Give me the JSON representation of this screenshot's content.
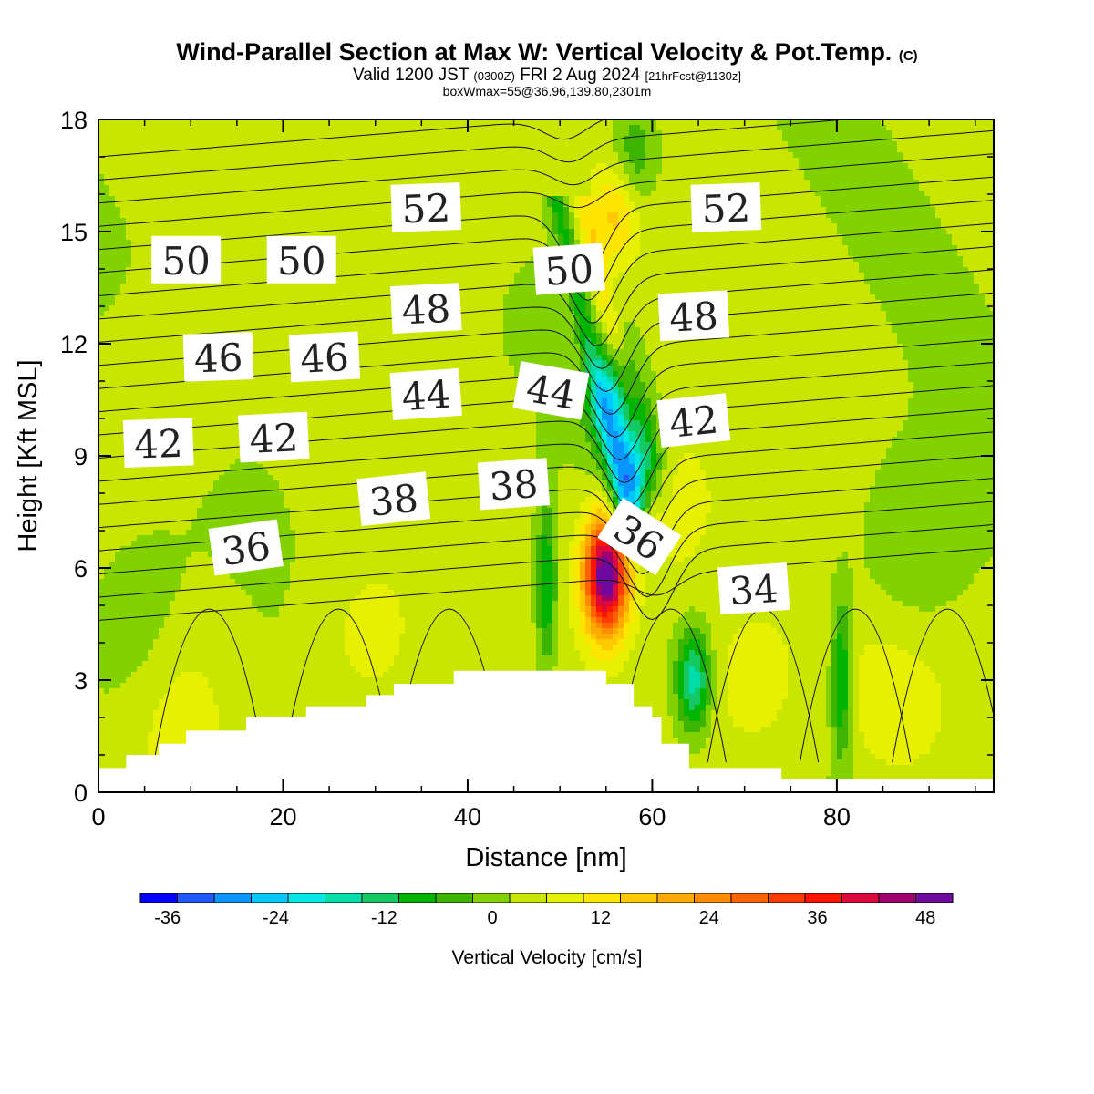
{
  "title": {
    "main": "Wind-Parallel Section at Max W: Vertical Velocity & Pot.Temp.",
    "main_suffix": "(C)",
    "valid_prefix": "Valid 1200 JST",
    "valid_z": "(0300Z)",
    "valid_date": "FRI 2 Aug 2024",
    "valid_fcst": "[21hrFcst@1130z]",
    "box": "boxWmax=55@36.96,139.80,2301m"
  },
  "chart_data": {
    "type": "heatmap",
    "xlabel": "Distance [nm]",
    "ylabel": "Height [Kft MSL]",
    "xlim": [
      0,
      97
    ],
    "ylim": [
      0,
      18
    ],
    "xticks": [
      "0",
      "20",
      "40",
      "60",
      "80"
    ],
    "yticks": [
      "0",
      "3",
      "6",
      "9",
      "12",
      "15",
      "18"
    ],
    "colorbar": {
      "title": "Vertical Velocity [cm/s]",
      "min": -39,
      "max": 51,
      "step": 4,
      "labels": [
        "-36",
        "-24",
        "-12",
        "0",
        "12",
        "24",
        "36",
        "48"
      ],
      "colors": [
        "#0000ff",
        "#1e5aff",
        "#0a96ff",
        "#00c8ff",
        "#00e6e6",
        "#00dcaa",
        "#14c864",
        "#00b400",
        "#3cb400",
        "#82d200",
        "#c8e600",
        "#e6f000",
        "#ffe600",
        "#ffc800",
        "#ffaa00",
        "#ff8c00",
        "#ff6400",
        "#ff3c00",
        "#ff1400",
        "#dc0a3c",
        "#a0006e",
        "#6e0aa0"
      ]
    },
    "terrain": [
      [
        0,
        0.65
      ],
      [
        3,
        0.65
      ],
      [
        3,
        1
      ],
      [
        6.5,
        1
      ],
      [
        6.5,
        1.3
      ],
      [
        9.5,
        1.3
      ],
      [
        9.5,
        1.65
      ],
      [
        16,
        1.65
      ],
      [
        16,
        2
      ],
      [
        22.5,
        2
      ],
      [
        22.5,
        2.3
      ],
      [
        29,
        2.3
      ],
      [
        29,
        2.6
      ],
      [
        32,
        2.6
      ],
      [
        32,
        2.9
      ],
      [
        38.5,
        2.9
      ],
      [
        38.5,
        3.25
      ],
      [
        55,
        3.25
      ],
      [
        55,
        2.9
      ],
      [
        58,
        2.9
      ],
      [
        58,
        2.3
      ],
      [
        60,
        2.3
      ],
      [
        60,
        2
      ],
      [
        61,
        2
      ],
      [
        61,
        1.3
      ],
      [
        64,
        1.3
      ],
      [
        64,
        0.65
      ],
      [
        74,
        0.65
      ],
      [
        74,
        0.35
      ],
      [
        97,
        0.35
      ]
    ],
    "potential_temperature_labels": [
      {
        "text": "34",
        "x": 71,
        "y": 5.4,
        "angle": -4
      },
      {
        "text": "36",
        "x": 16,
        "y": 6.5,
        "angle": -8
      },
      {
        "text": "36",
        "x": 58.5,
        "y": 6.8,
        "angle": 33
      },
      {
        "text": "38",
        "x": 32,
        "y": 7.8,
        "angle": -6
      },
      {
        "text": "38",
        "x": 45,
        "y": 8.2,
        "angle": -4
      },
      {
        "text": "42",
        "x": 6.5,
        "y": 9.3,
        "angle": -2
      },
      {
        "text": "42",
        "x": 19,
        "y": 9.45,
        "angle": -3
      },
      {
        "text": "42",
        "x": 64.5,
        "y": 9.9,
        "angle": -6
      },
      {
        "text": "44",
        "x": 35.5,
        "y": 10.6,
        "angle": -4
      },
      {
        "text": "44",
        "x": 49,
        "y": 10.7,
        "angle": 10
      },
      {
        "text": "46",
        "x": 13,
        "y": 11.6,
        "angle": -2
      },
      {
        "text": "46",
        "x": 24.5,
        "y": 11.6,
        "angle": -3
      },
      {
        "text": "48",
        "x": 35.5,
        "y": 12.9,
        "angle": -3
      },
      {
        "text": "48",
        "x": 64.5,
        "y": 12.7,
        "angle": -3
      },
      {
        "text": "50",
        "x": 9.5,
        "y": 14.2,
        "angle": 0
      },
      {
        "text": "50",
        "x": 22,
        "y": 14.2,
        "angle": 0
      },
      {
        "text": "50",
        "x": 51,
        "y": 13.95,
        "angle": -4
      },
      {
        "text": "52",
        "x": 35.5,
        "y": 15.6,
        "angle": -2
      },
      {
        "text": "52",
        "x": 68,
        "y": 15.6,
        "angle": -2
      }
    ],
    "potential_temperature_contours_C": [
      34,
      35,
      36,
      37,
      38,
      39,
      40,
      41,
      42,
      43,
      44,
      45,
      46,
      47,
      48,
      49,
      50,
      51,
      52,
      53,
      54
    ],
    "vertical_velocity_features": [
      {
        "kind": "updraft",
        "x": 55,
        "y": 5.8,
        "peak": 48
      },
      {
        "kind": "updraft",
        "x": 56,
        "y": 15.5,
        "peak": 12
      },
      {
        "kind": "downdraft",
        "x": 58,
        "y": 8.5,
        "peak": -33
      },
      {
        "kind": "downdraft",
        "x": 55.5,
        "y": 10.5,
        "peak": -20
      },
      {
        "kind": "downdraft",
        "x": 64.5,
        "y": 3,
        "peak": -20
      },
      {
        "kind": "downdraft",
        "x": 48.5,
        "y": 5.5,
        "peak": -14
      },
      {
        "kind": "downdraft",
        "x": 80.5,
        "y": 3,
        "peak": -15
      },
      {
        "kind": "downdraft",
        "x": 58,
        "y": 17,
        "peak": -10
      },
      {
        "kind": "downdraft",
        "x": 4,
        "y": 4,
        "peak": -6
      },
      {
        "kind": "downdraft",
        "x": 88,
        "y": 6.5,
        "peak": -6
      },
      {
        "kind": "updraft",
        "x": 29,
        "y": 4,
        "peak": 5
      },
      {
        "kind": "updraft",
        "x": 8,
        "y": 2.5,
        "peak": 5
      },
      {
        "kind": "updraft",
        "x": 62,
        "y": 7.5,
        "peak": 6
      },
      {
        "kind": "updraft",
        "x": 71,
        "y": 3,
        "peak": 6
      },
      {
        "kind": "updraft",
        "x": 85.5,
        "y": 2.5,
        "peak": 5
      },
      {
        "kind": "updraft",
        "x": 39,
        "y": 16,
        "peak": 3
      },
      {
        "kind": "updraft",
        "x": 8,
        "y": 11,
        "peak": 3
      }
    ]
  }
}
